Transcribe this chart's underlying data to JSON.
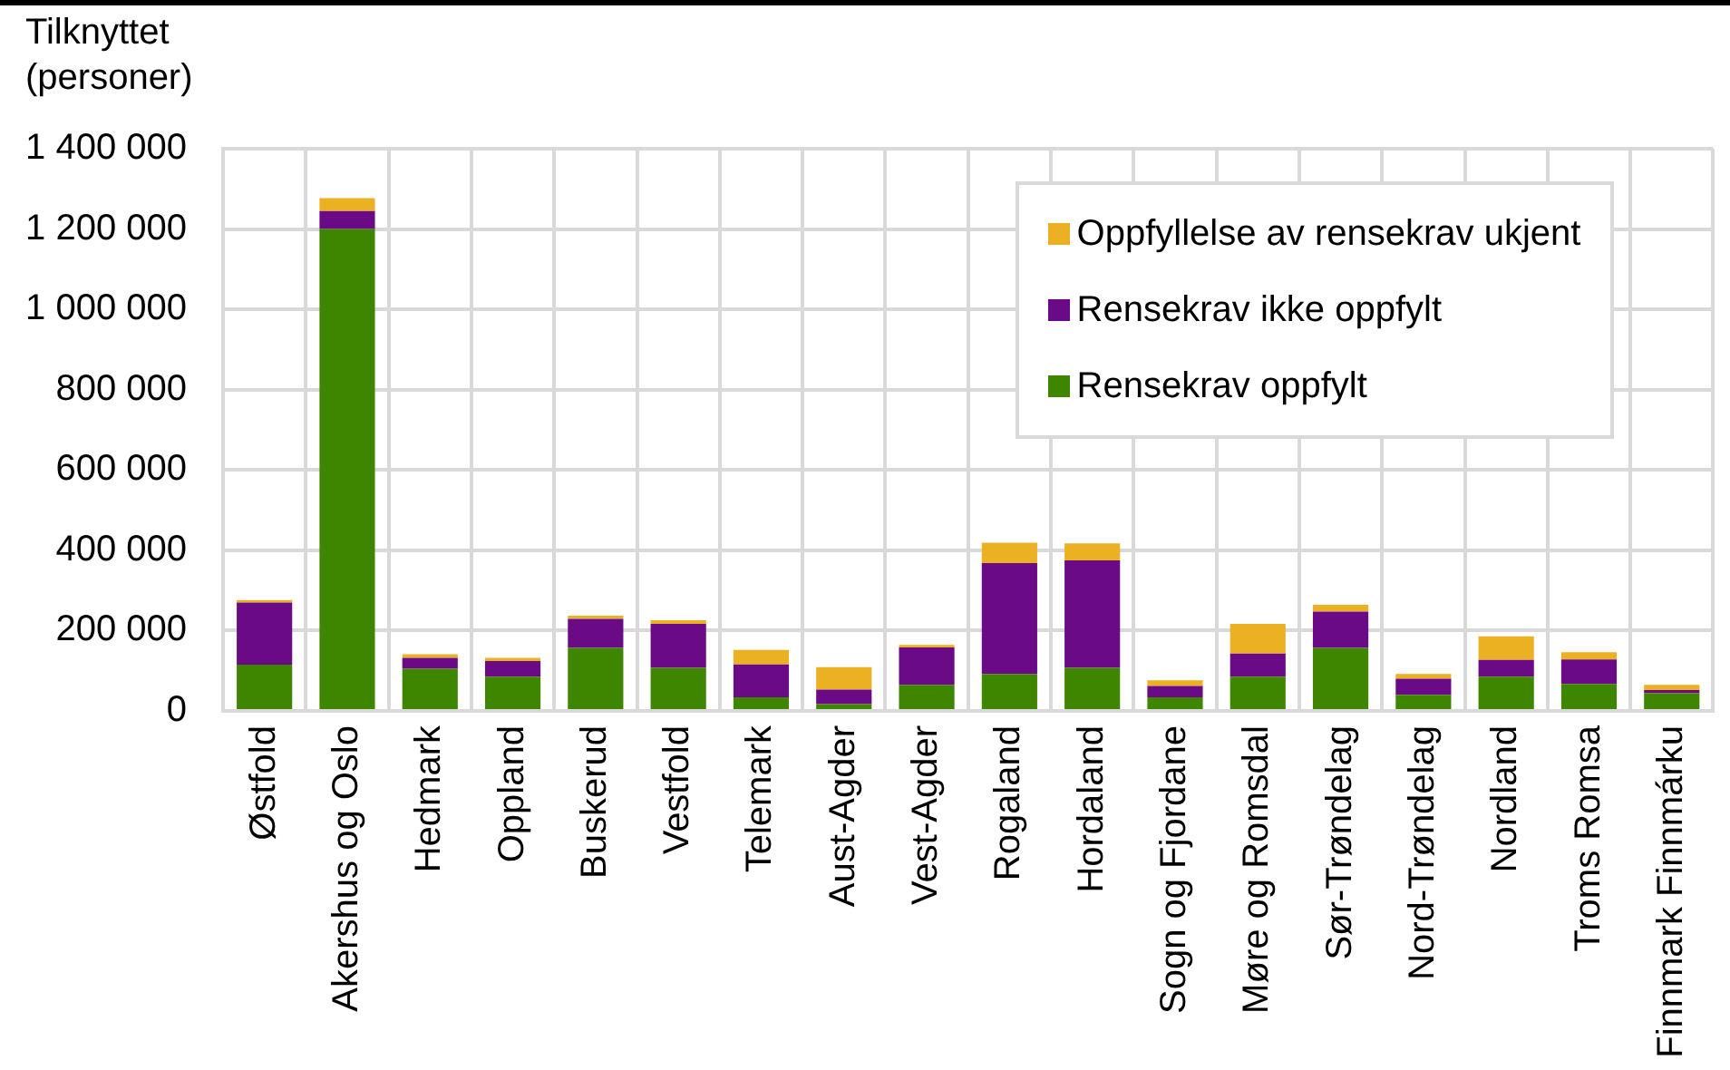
{
  "chart_data": {
    "type": "bar",
    "ylabel": "Tilknyttet (personer)",
    "stacked": true,
    "grid": true,
    "legend": "top right",
    "categories": [
      "Østfold",
      "Akershus og Oslo",
      "Hedmark",
      "Oppland",
      "Buskerud",
      "Vestfold",
      "Telemark",
      "Aust-Agder",
      "Vest-Agder",
      "Rogaland",
      "Hordaland",
      "Sogn og Fjordane",
      "Møre og Romsdal",
      "Sør-Trøndelag",
      "Nord-Trøndelag",
      "Nordland",
      "Troms Romsa",
      "Finnmark Finnmárku"
    ],
    "series": [
      {
        "name": "Rensekrav oppfylt",
        "color": "#3f8600",
        "values": [
          115000,
          1200000,
          105000,
          85000,
          157000,
          107000,
          34000,
          17000,
          65000,
          92000,
          107000,
          34000,
          85000,
          157000,
          40000,
          85000,
          67000,
          44000
        ]
      },
      {
        "name": "Rensekrav ikke oppfylt",
        "color": "#6b0a87",
        "values": [
          155000,
          45000,
          27000,
          39000,
          72000,
          110000,
          82000,
          36000,
          93000,
          276000,
          268000,
          28000,
          58000,
          90000,
          40000,
          42000,
          61000,
          8000
        ]
      },
      {
        "name": "Oppfyllelse av rensekrav ukjent",
        "color": "#ecb123",
        "values": [
          6000,
          32000,
          9000,
          8000,
          8000,
          9000,
          36000,
          56000,
          6000,
          51000,
          42000,
          14000,
          74000,
          17000,
          12000,
          59000,
          18000,
          13000
        ]
      }
    ],
    "ylim": [
      0,
      1400000
    ],
    "yticks": [
      0,
      {
        "value": 200000,
        "label": "200 000"
      },
      {
        "value": 400000,
        "label": "400 000"
      },
      {
        "value": 600000,
        "label": "600 000"
      },
      {
        "value": 800000,
        "label": "800 000"
      },
      {
        "value": 1000000,
        "label": "1 000 000"
      },
      {
        "value": 1200000,
        "label": "1 200 000"
      },
      {
        "value": 1400000,
        "label": "1 400 000"
      }
    ]
  }
}
